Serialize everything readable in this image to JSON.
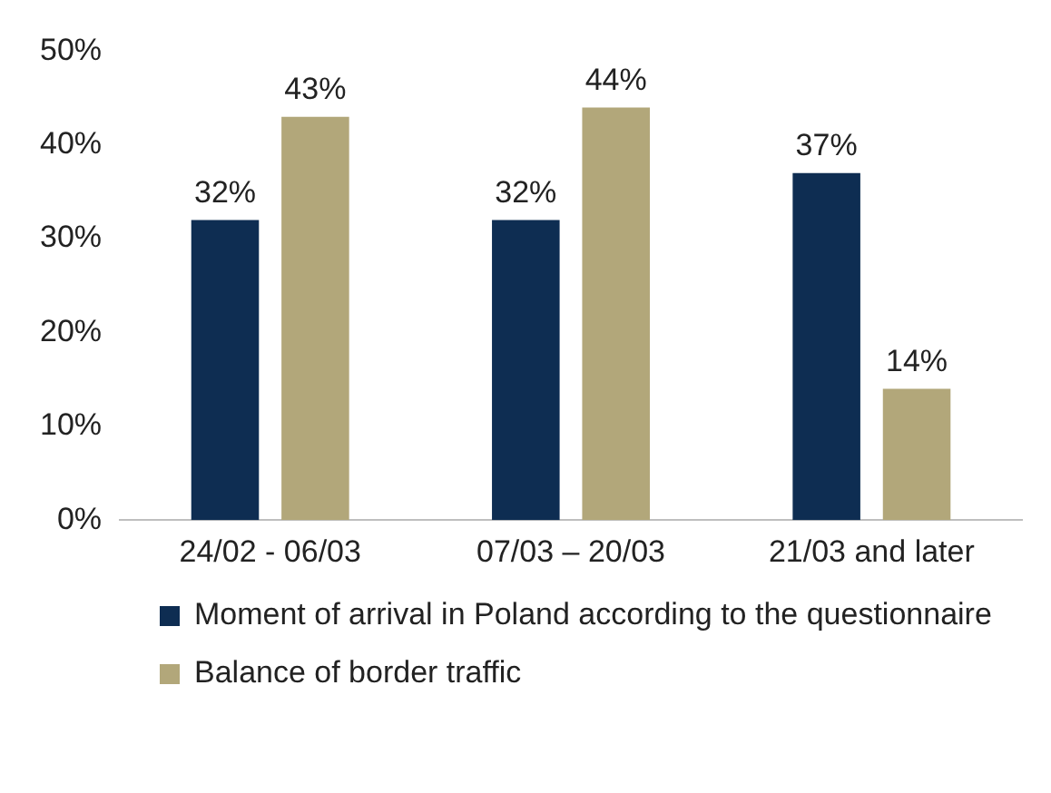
{
  "chart_data": {
    "type": "bar",
    "categories": [
      "24/02 - 06/03",
      "07/03 – 20/03",
      "21/03 and later"
    ],
    "series": [
      {
        "name": "Moment of arrival in Poland according to the questionnaire",
        "color": "#0e2d52",
        "values": [
          32,
          32,
          37
        ],
        "value_labels": [
          "32%",
          "32%",
          "37%"
        ]
      },
      {
        "name": "Balance of border traffic",
        "color": "#b2a77a",
        "values": [
          43,
          44,
          14
        ],
        "value_labels": [
          "43%",
          "44%",
          "14%"
        ]
      }
    ],
    "ylim": [
      0,
      50
    ],
    "yticks": [
      {
        "value": 0,
        "label": "0%"
      },
      {
        "value": 10,
        "label": "10%"
      },
      {
        "value": 20,
        "label": "20%"
      },
      {
        "value": 30,
        "label": "30%"
      },
      {
        "value": 40,
        "label": "40%"
      },
      {
        "value": 50,
        "label": "50%"
      }
    ],
    "grid": false,
    "legend": "bottom"
  }
}
